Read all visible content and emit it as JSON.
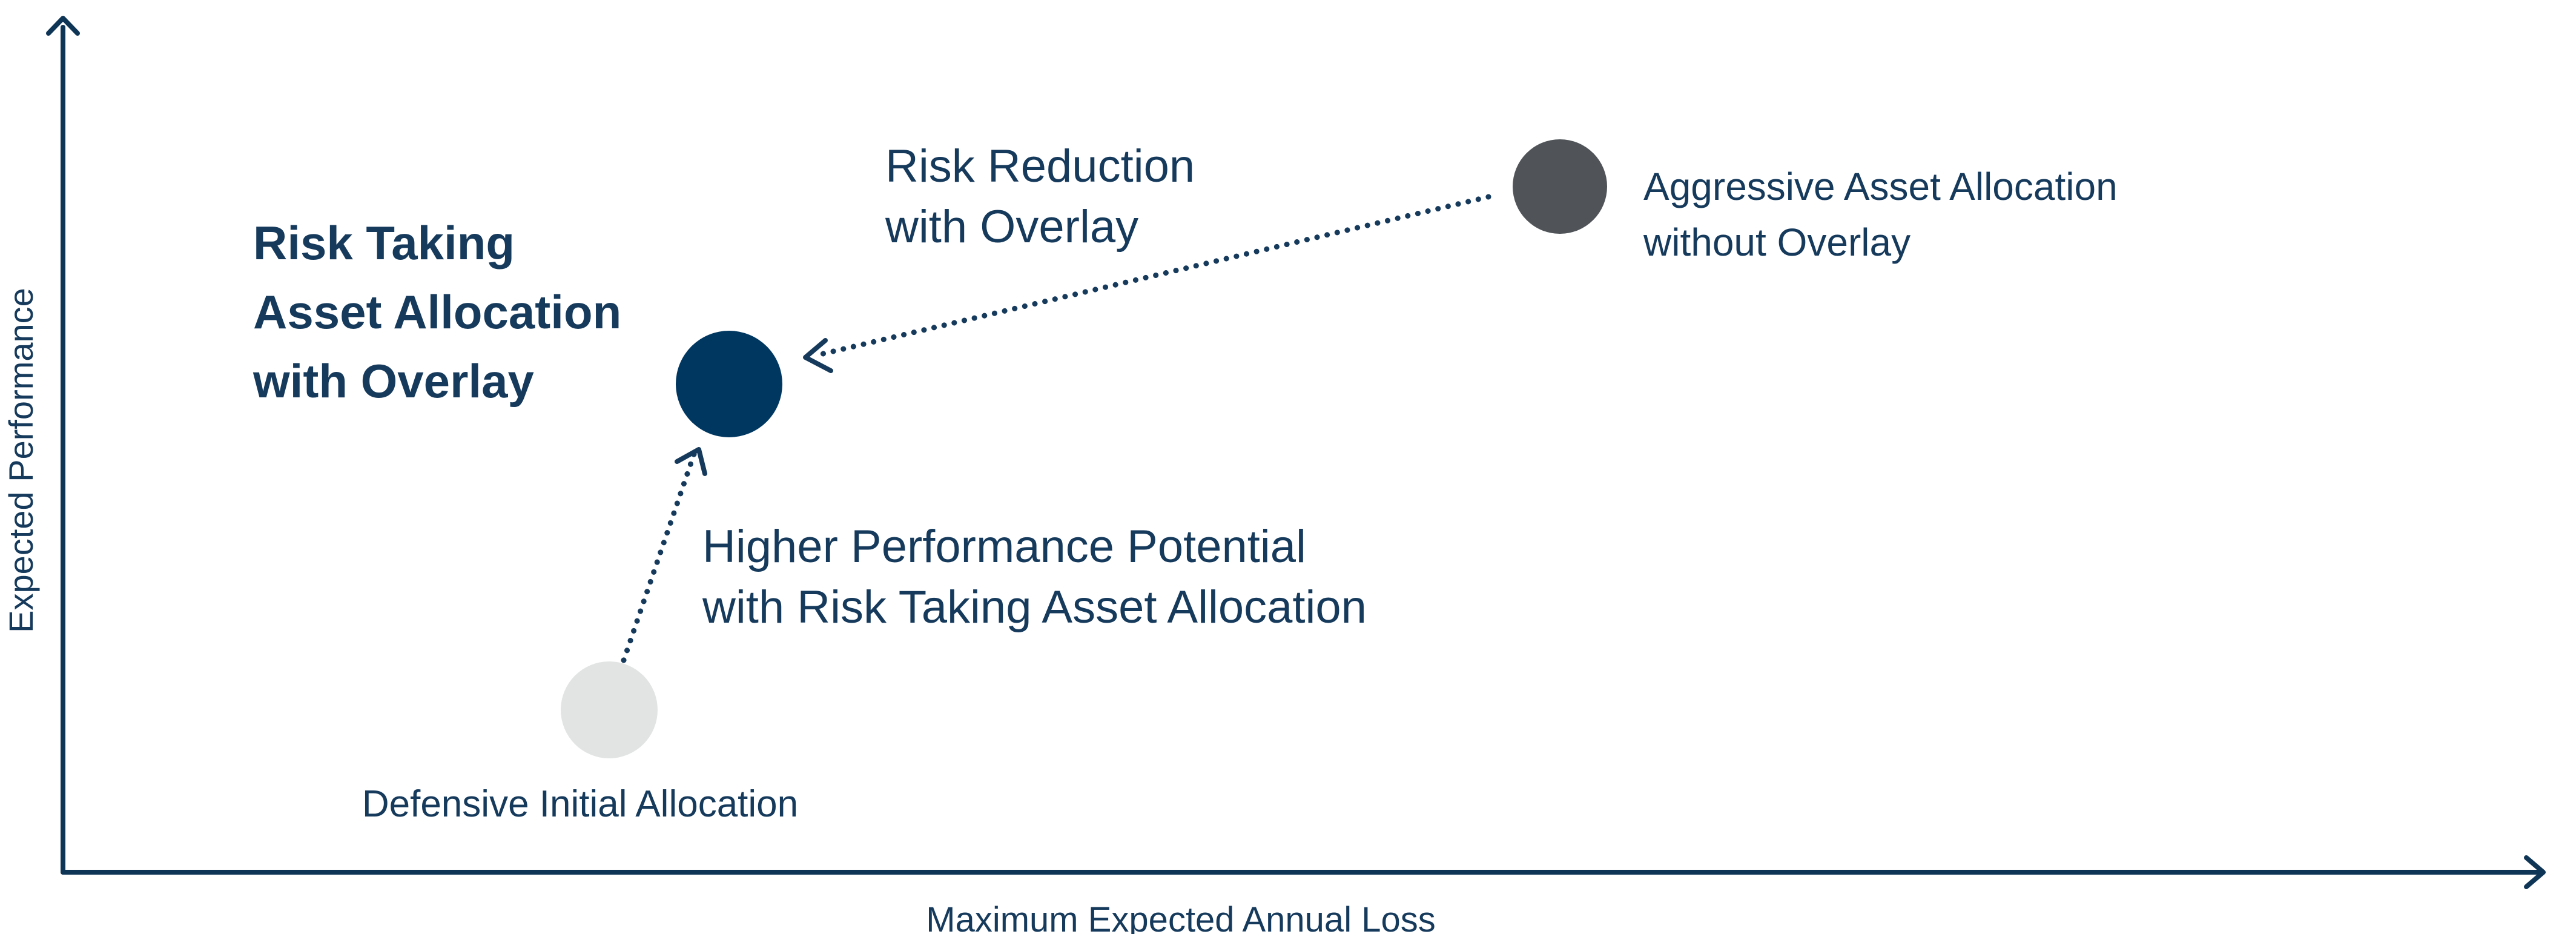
{
  "axes": {
    "x_label": "Maximum Expected Annual Loss",
    "y_label": "Expected Performance"
  },
  "nodes": {
    "defensive": {
      "label": "Defensive Initial Allocation",
      "color": "#e2e4e4"
    },
    "risk_taking": {
      "label_lines": [
        "Risk Taking",
        "Asset Allocation",
        "with Overlay"
      ],
      "color": "#003761"
    },
    "aggressive": {
      "label_lines": [
        "Aggressive Asset Allocation",
        "without Overlay"
      ],
      "color": "#505458"
    }
  },
  "arrows": {
    "risk_reduction": {
      "label_lines": [
        "Risk Reduction",
        "with Overlay"
      ]
    },
    "higher_performance": {
      "label_lines": [
        "Higher Performance Potential",
        "with Risk Taking Asset Allocation"
      ]
    }
  },
  "colors": {
    "axis": "#0f3556",
    "text": "#163a5c",
    "arrow": "#163a5c"
  }
}
